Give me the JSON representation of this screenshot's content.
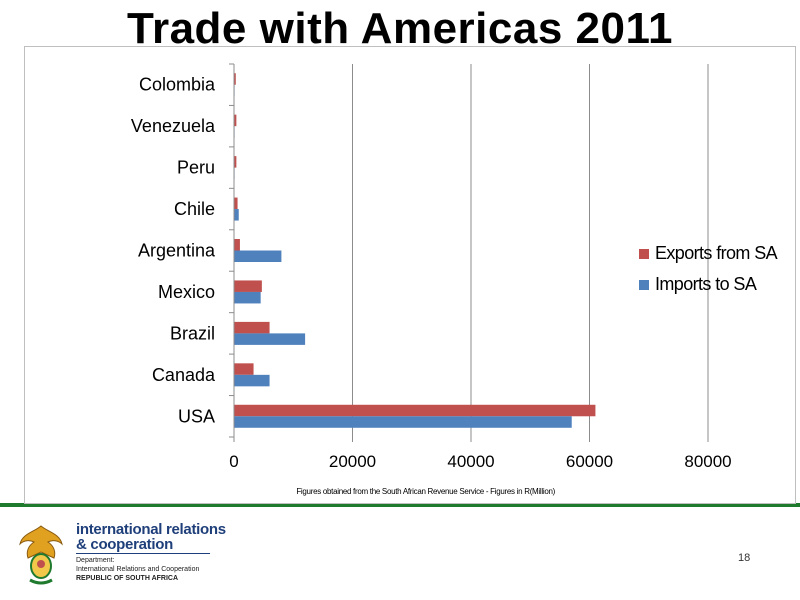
{
  "slide": {
    "title": "Trade with Americas 2011",
    "page_number": "18",
    "source_note": "Figures obtained from the South African Revenue Service  -  Figures in R(Million)"
  },
  "footer": {
    "org_line1": "international relations",
    "org_line2": "& cooperation",
    "dept_label": "Department:",
    "dept_full": "International Relations and Cooperation",
    "country": "REPUBLIC OF SOUTH AFRICA"
  },
  "chart_data": {
    "type": "bar",
    "orientation": "horizontal",
    "title": "",
    "xlabel": "",
    "ylabel": "",
    "categories": [
      "USA",
      "Canada",
      "Brazil",
      "Mexico",
      "Argentina",
      "Chile",
      "Peru",
      "Venezuela",
      "Colombia"
    ],
    "series": [
      {
        "name": "Imports to SA",
        "color": "#4f81bd",
        "values": [
          57000,
          6000,
          12000,
          4500,
          8000,
          800,
          100,
          100,
          100
        ]
      },
      {
        "name": "Exports from SA",
        "color": "#c0504d",
        "values": [
          61000,
          3300,
          6000,
          4700,
          1000,
          600,
          400,
          400,
          300
        ]
      }
    ],
    "xlim": [
      0,
      80000
    ],
    "xticks": [
      "0",
      "20000",
      "40000",
      "60000",
      "80000"
    ],
    "xtick_values": [
      0,
      20000,
      40000,
      60000,
      80000
    ],
    "grid": true,
    "legend_position": "right"
  }
}
